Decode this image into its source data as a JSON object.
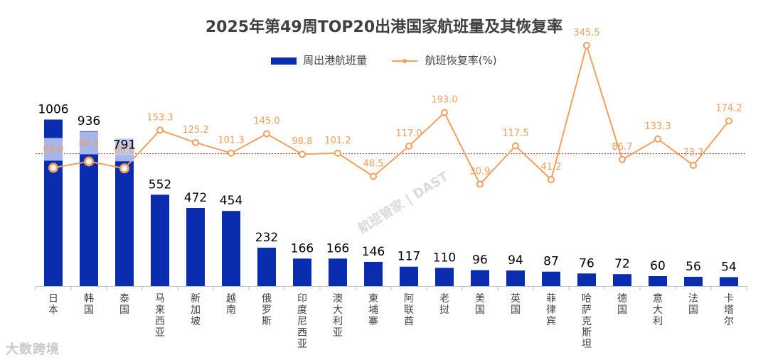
{
  "chart_data": {
    "type": "bar+line",
    "title": "2025年第49周TOP20出港国家航班量及其恢复率",
    "categories": [
      "日本",
      "韩国",
      "泰国",
      "马来西亚",
      "新加坡",
      "越南",
      "俄罗斯",
      "印度尼西亚",
      "澳大利亚",
      "柬埔寨",
      "阿联酋",
      "老挝",
      "美国",
      "英国",
      "菲律宾",
      "哈萨克斯坦",
      "德国",
      "意大利",
      "法国",
      "卡塔尔"
    ],
    "series": [
      {
        "name": "周出港航班量",
        "type": "bar",
        "color": "#0a2db0",
        "values": [
          1006,
          936,
          791,
          552,
          472,
          454,
          232,
          166,
          166,
          146,
          117,
          110,
          96,
          94,
          87,
          76,
          72,
          60,
          56,
          54
        ],
        "labels": [
          "1006",
          "936",
          "791",
          "552",
          "472",
          "454",
          "232",
          "166",
          "166",
          "146",
          "117",
          "110",
          "96",
          "94",
          "87",
          "76",
          "72",
          "60",
          "56",
          "54"
        ]
      },
      {
        "name": "航班恢复率(%)",
        "type": "line",
        "color": "#f0a060",
        "values": [
          68.0,
          82.4,
          66.6,
          153.3,
          125.2,
          101.3,
          145.0,
          98.8,
          101.2,
          48.5,
          117.0,
          193.0,
          30.9,
          117.5,
          41.2,
          345.5,
          86.7,
          133.3,
          73.7,
          174.2
        ],
        "labels": [
          "68.0",
          "82.4",
          "66.6",
          "153.3",
          "125.2",
          "101.3",
          "145.0",
          "98.8",
          "101.2",
          "48.5",
          "117.0",
          "193.0",
          "30.9",
          "117.5",
          "41.2",
          "345.5",
          "86.7",
          "133.3",
          "73.7",
          "174.2"
        ]
      }
    ],
    "reference_line": {
      "value": 100,
      "style": "dotted",
      "color": "#e02020"
    },
    "bar_axis_range": [
      0,
      1600
    ],
    "line_axis_range": [
      -200,
      400
    ],
    "legend_position": "top-center",
    "grid": false
  },
  "branding": {
    "logo_text": "大数跨境",
    "watermark_text": "航班管家 | DAST"
  }
}
